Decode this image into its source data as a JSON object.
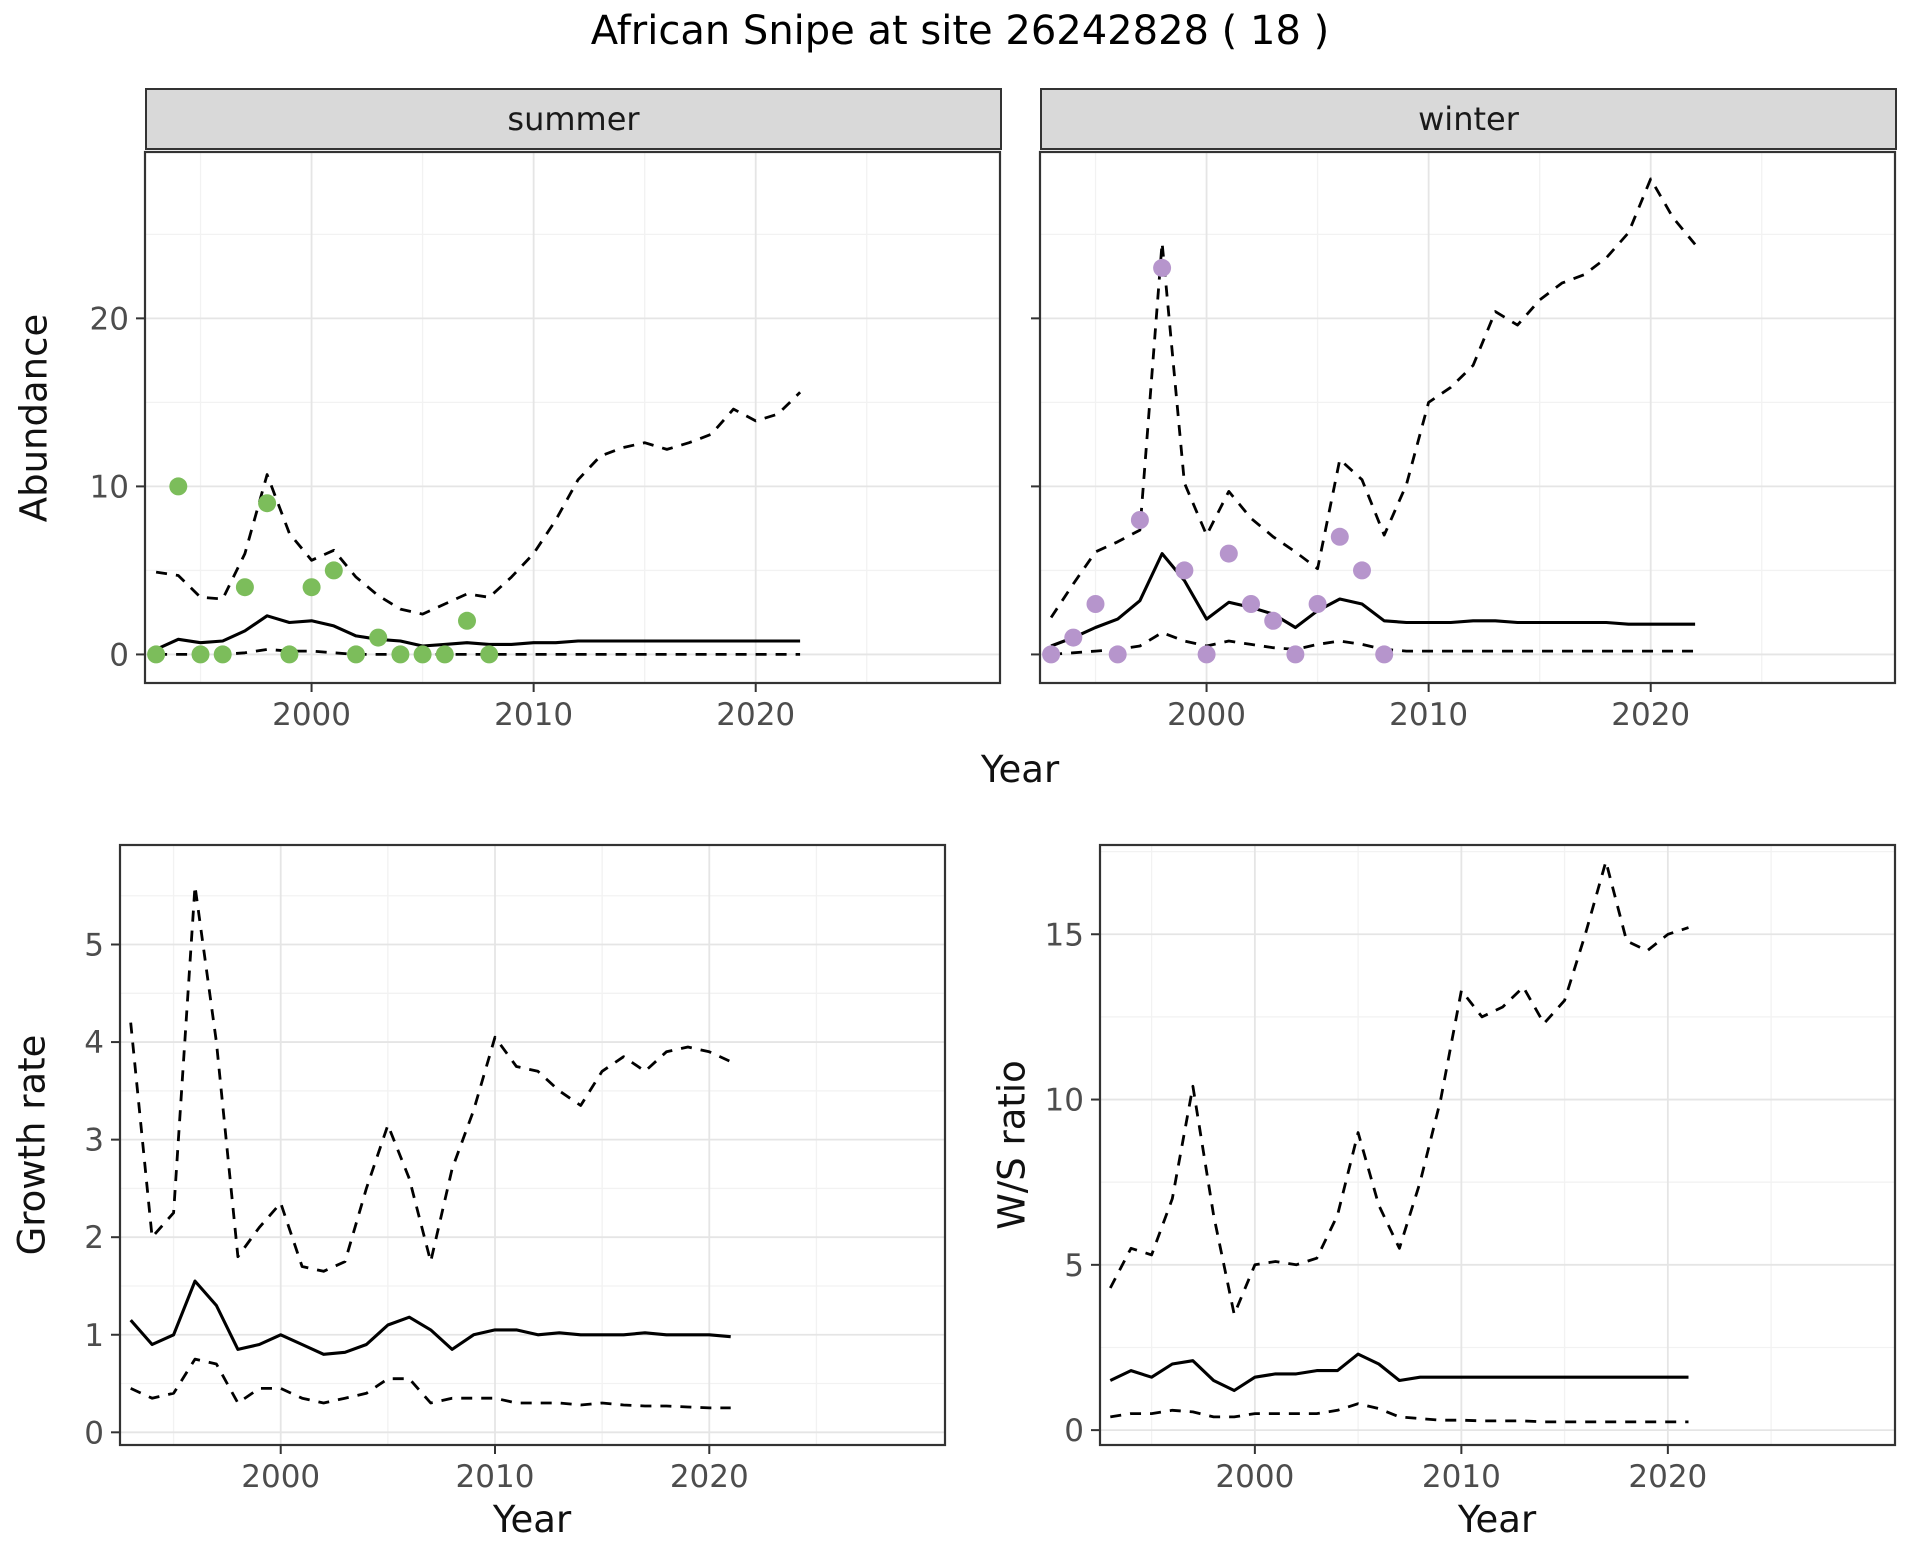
{
  "title": "African Snipe at site 26242828 ( 18 )",
  "top_row": {
    "ylabel": "Abundance",
    "xlabel": "Year",
    "facets": [
      {
        "label": "summer"
      },
      {
        "label": "winter"
      }
    ]
  },
  "bottom_row": {
    "left": {
      "ylabel": "Growth rate",
      "xlabel": "Year"
    },
    "right": {
      "ylabel": "W/S ratio",
      "xlabel": "Year"
    }
  },
  "colors": {
    "summer_points": "#7cbd5b",
    "winter_points": "#b695cc",
    "line": "#000000",
    "strip_bg": "#d9d9d9",
    "panel_border": "#333333",
    "grid_major": "#e5e5e5",
    "grid_minor": "#f2f2f2",
    "tick_label": "#4d4d4d"
  },
  "chart_data": [
    {
      "id": "abundance-summer",
      "type": "line",
      "facet": "summer",
      "title": "",
      "xlabel": "Year",
      "ylabel": "Abundance",
      "xlim": [
        1992.5,
        2031
      ],
      "ylim": [
        -1.7,
        29.9
      ],
      "xticks": [
        2000,
        2010,
        2020
      ],
      "yticks": [
        0,
        10,
        20
      ],
      "show_ytick_labels": true,
      "years": [
        1993,
        1994,
        1995,
        1996,
        1997,
        1998,
        1999,
        2000,
        2001,
        2002,
        2003,
        2004,
        2005,
        2006,
        2007,
        2008,
        2009,
        2010,
        2011,
        2012,
        2013,
        2014,
        2015,
        2016,
        2017,
        2018,
        2019,
        2020,
        2021,
        2022
      ],
      "observations": {
        "color_key": "summer_points",
        "x": [
          1993,
          1994,
          1995,
          1996,
          1997,
          1998,
          1999,
          2000,
          2001,
          2002,
          2003,
          2004,
          2005,
          2006,
          2007,
          2008
        ],
        "y": [
          0,
          10,
          0,
          0,
          4,
          9,
          0,
          4,
          5,
          0,
          1,
          0,
          0,
          0,
          2,
          0
        ]
      },
      "series": [
        {
          "name": "upper_ci",
          "dash": true,
          "y": [
            4.9,
            4.7,
            3.4,
            3.3,
            6.0,
            10.7,
            7.2,
            5.6,
            6.2,
            4.6,
            3.5,
            2.7,
            2.4,
            3.0,
            3.6,
            3.4,
            4.6,
            6.0,
            8.0,
            10.4,
            11.8,
            12.3,
            12.6,
            12.2,
            12.6,
            13.1,
            14.6,
            13.9,
            14.3,
            15.6
          ]
        },
        {
          "name": "lower_ci",
          "dash": true,
          "y": [
            0,
            0,
            0,
            0,
            0.1,
            0.3,
            0.2,
            0.2,
            0.1,
            0,
            0,
            0,
            0,
            0,
            0,
            0,
            0,
            0,
            0,
            0,
            0,
            0,
            0,
            0,
            0,
            0,
            0,
            0,
            0,
            0
          ]
        },
        {
          "name": "mean",
          "dash": false,
          "y": [
            0.3,
            0.9,
            0.7,
            0.8,
            1.4,
            2.3,
            1.9,
            2.0,
            1.7,
            1.1,
            0.9,
            0.8,
            0.5,
            0.6,
            0.7,
            0.6,
            0.6,
            0.7,
            0.7,
            0.8,
            0.8,
            0.8,
            0.8,
            0.8,
            0.8,
            0.8,
            0.8,
            0.8,
            0.8,
            0.8
          ]
        }
      ]
    },
    {
      "id": "abundance-winter",
      "type": "line",
      "facet": "winter",
      "title": "",
      "xlabel": "Year",
      "ylabel": "Abundance",
      "xlim": [
        1992.5,
        2031
      ],
      "ylim": [
        -1.7,
        29.9
      ],
      "xticks": [
        2000,
        2010,
        2020
      ],
      "yticks": [
        0,
        10,
        20
      ],
      "show_ytick_labels": false,
      "years": [
        1993,
        1994,
        1995,
        1996,
        1997,
        1998,
        1999,
        2000,
        2001,
        2002,
        2003,
        2004,
        2005,
        2006,
        2007,
        2008,
        2009,
        2010,
        2011,
        2012,
        2013,
        2014,
        2015,
        2016,
        2017,
        2018,
        2019,
        2020,
        2021,
        2022
      ],
      "observations": {
        "color_key": "winter_points",
        "x": [
          1993,
          1994,
          1995,
          1996,
          1997,
          1998,
          1999,
          2000,
          2001,
          2002,
          2003,
          2004,
          2005,
          2006,
          2007,
          2008
        ],
        "y": [
          0,
          1,
          3,
          0,
          8,
          23,
          5,
          0,
          6,
          3,
          2,
          0,
          3,
          7,
          5,
          0
        ]
      },
      "series": [
        {
          "name": "upper_ci",
          "dash": true,
          "y": [
            2.2,
            4.2,
            6.1,
            6.7,
            7.4,
            24.5,
            10.2,
            7.1,
            9.7,
            8.1,
            7.0,
            6.1,
            5.1,
            11.6,
            10.4,
            7.1,
            10.1,
            15.0,
            15.9,
            17.2,
            20.4,
            19.6,
            21.1,
            22.1,
            22.6,
            23.6,
            25.1,
            28.3,
            26.0,
            24.4
          ]
        },
        {
          "name": "lower_ci",
          "dash": true,
          "y": [
            0,
            0.1,
            0.2,
            0.3,
            0.5,
            1.3,
            0.8,
            0.5,
            0.8,
            0.6,
            0.4,
            0.3,
            0.6,
            0.8,
            0.6,
            0.3,
            0.2,
            0.2,
            0.2,
            0.2,
            0.2,
            0.2,
            0.2,
            0.2,
            0.2,
            0.2,
            0.2,
            0.2,
            0.2,
            0.2
          ]
        },
        {
          "name": "mean",
          "dash": false,
          "y": [
            0.5,
            1.0,
            1.6,
            2.1,
            3.2,
            6.0,
            4.4,
            2.1,
            3.1,
            2.8,
            2.4,
            1.6,
            2.6,
            3.3,
            3.0,
            2.0,
            1.9,
            1.9,
            1.9,
            2.0,
            2.0,
            1.9,
            1.9,
            1.9,
            1.9,
            1.9,
            1.8,
            1.8,
            1.8,
            1.8
          ]
        }
      ]
    },
    {
      "id": "growth-rate",
      "type": "line",
      "facet": "",
      "title": "",
      "xlabel": "Year",
      "ylabel": "Growth rate",
      "xlim": [
        1992.5,
        2031
      ],
      "ylim": [
        -0.13,
        6.02
      ],
      "xticks": [
        2000,
        2010,
        2020
      ],
      "yticks": [
        0,
        1,
        2,
        3,
        4,
        5
      ],
      "show_ytick_labels": true,
      "years": [
        1993,
        1994,
        1995,
        1996,
        1997,
        1998,
        1999,
        2000,
        2001,
        2002,
        2003,
        2004,
        2005,
        2006,
        2007,
        2008,
        2009,
        2010,
        2011,
        2012,
        2013,
        2014,
        2015,
        2016,
        2017,
        2018,
        2019,
        2020,
        2021
      ],
      "series": [
        {
          "name": "upper_ci",
          "dash": true,
          "y": [
            4.2,
            2.0,
            2.25,
            5.6,
            4.0,
            1.8,
            2.1,
            2.35,
            1.7,
            1.65,
            1.75,
            2.5,
            3.15,
            2.6,
            1.75,
            2.7,
            3.3,
            4.05,
            3.75,
            3.7,
            3.5,
            3.35,
            3.7,
            3.85,
            3.7,
            3.9,
            3.95,
            3.9,
            3.8
          ]
        },
        {
          "name": "lower_ci",
          "dash": true,
          "y": [
            0.45,
            0.35,
            0.4,
            0.75,
            0.7,
            0.3,
            0.45,
            0.45,
            0.35,
            0.3,
            0.35,
            0.4,
            0.55,
            0.55,
            0.3,
            0.35,
            0.35,
            0.35,
            0.3,
            0.3,
            0.3,
            0.28,
            0.3,
            0.28,
            0.27,
            0.27,
            0.26,
            0.25,
            0.25
          ]
        },
        {
          "name": "mean",
          "dash": false,
          "y": [
            1.15,
            0.9,
            1.0,
            1.55,
            1.3,
            0.85,
            0.9,
            1.0,
            0.9,
            0.8,
            0.82,
            0.9,
            1.1,
            1.18,
            1.05,
            0.85,
            1.0,
            1.05,
            1.05,
            1.0,
            1.02,
            1.0,
            1.0,
            1.0,
            1.02,
            1.0,
            1.0,
            1.0,
            0.98
          ]
        }
      ]
    },
    {
      "id": "ws-ratio",
      "type": "line",
      "facet": "",
      "title": "",
      "xlabel": "Year",
      "ylabel": "W/S ratio",
      "xlim": [
        1992.5,
        2031
      ],
      "ylim": [
        -0.45,
        17.7
      ],
      "xticks": [
        2000,
        2010,
        2020
      ],
      "yticks": [
        0,
        5,
        10,
        15
      ],
      "show_ytick_labels": true,
      "years": [
        1993,
        1994,
        1995,
        1996,
        1997,
        1998,
        1999,
        2000,
        2001,
        2002,
        2003,
        2004,
        2005,
        2006,
        2007,
        2008,
        2009,
        2010,
        2011,
        2012,
        2013,
        2014,
        2015,
        2016,
        2017,
        2018,
        2019,
        2020,
        2021
      ],
      "series": [
        {
          "name": "upper_ci",
          "dash": true,
          "y": [
            4.3,
            5.5,
            5.3,
            7.0,
            10.4,
            6.5,
            3.5,
            5.0,
            5.1,
            5.0,
            5.2,
            6.5,
            9.0,
            6.8,
            5.5,
            7.5,
            10.0,
            13.3,
            12.5,
            12.8,
            13.4,
            12.3,
            13.0,
            15.0,
            17.2,
            14.8,
            14.5,
            15.0,
            15.2
          ]
        },
        {
          "name": "lower_ci",
          "dash": true,
          "y": [
            0.4,
            0.5,
            0.5,
            0.6,
            0.55,
            0.4,
            0.4,
            0.5,
            0.5,
            0.5,
            0.5,
            0.6,
            0.8,
            0.65,
            0.4,
            0.35,
            0.3,
            0.3,
            0.28,
            0.28,
            0.28,
            0.25,
            0.25,
            0.25,
            0.25,
            0.25,
            0.25,
            0.25,
            0.25
          ]
        },
        {
          "name": "mean",
          "dash": false,
          "y": [
            1.5,
            1.8,
            1.6,
            2.0,
            2.1,
            1.5,
            1.2,
            1.6,
            1.7,
            1.7,
            1.8,
            1.8,
            2.3,
            2.0,
            1.5,
            1.6,
            1.6,
            1.6,
            1.6,
            1.6,
            1.6,
            1.6,
            1.6,
            1.6,
            1.6,
            1.6,
            1.6,
            1.6,
            1.6
          ]
        }
      ]
    }
  ]
}
